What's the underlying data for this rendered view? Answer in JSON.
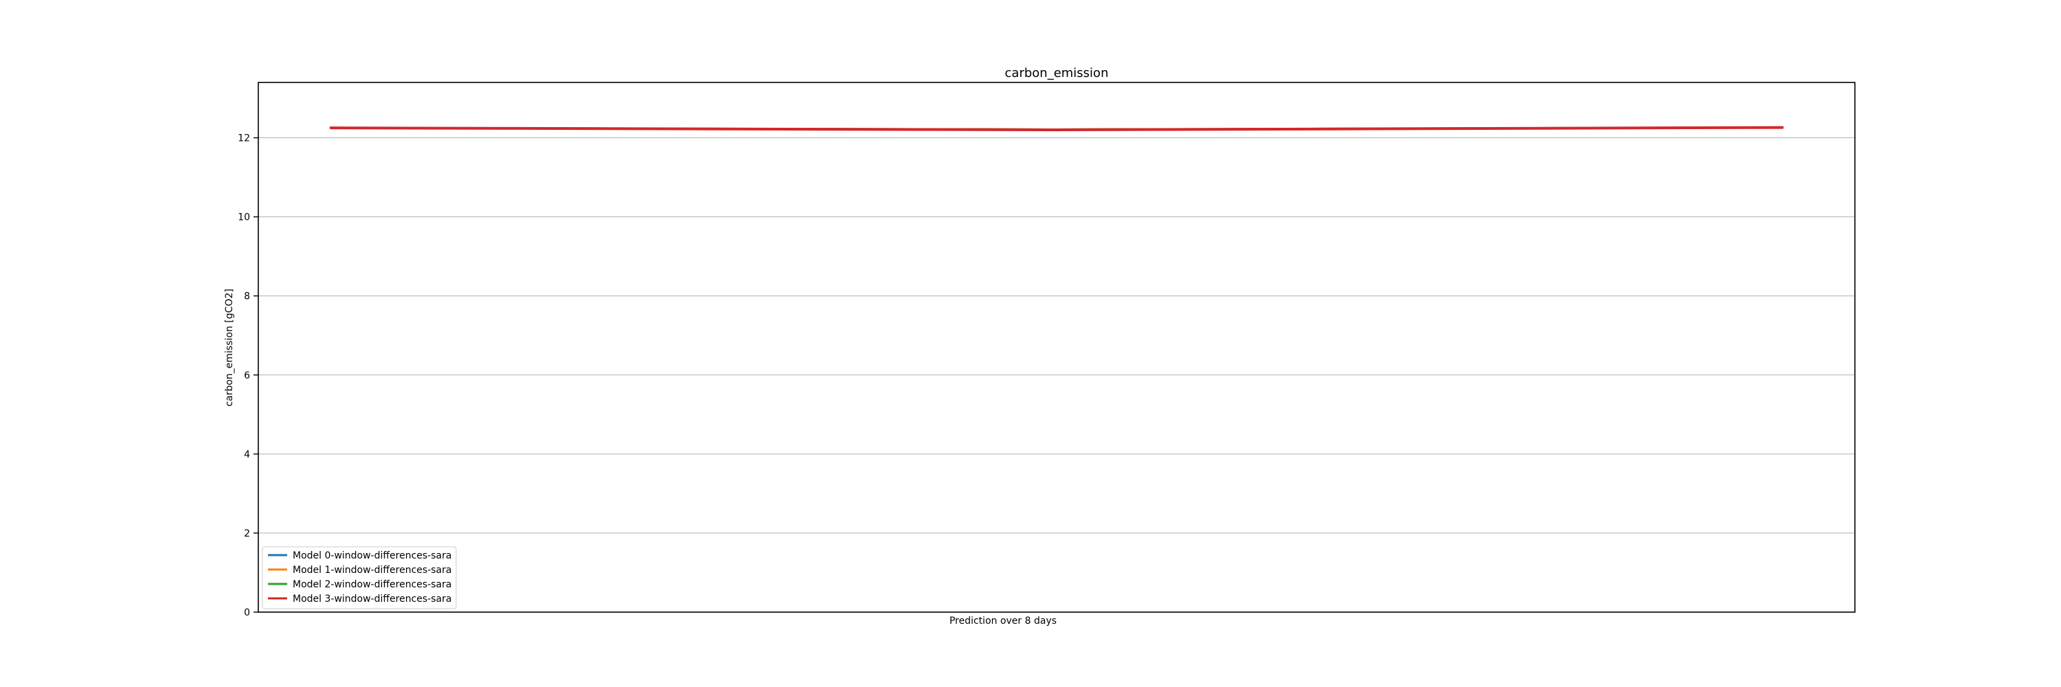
{
  "chart_data": {
    "type": "line",
    "title": "carbon_emission",
    "xlabel": "Prediction over 8 days",
    "ylabel": "carbon_emission [gCO2]",
    "ylim": [
      0,
      13.4
    ],
    "yticks": [
      0,
      2,
      4,
      6,
      8,
      10,
      12
    ],
    "xlim": [
      -0.05,
      1.05
    ],
    "grid": "horizontal",
    "legend_position": "lower-left",
    "x": [
      0,
      0.5,
      1
    ],
    "series": [
      {
        "name": "Model 0-window-differences-sara",
        "color": "#1f77b4",
        "values": [
          12.25,
          12.21,
          12.26
        ]
      },
      {
        "name": "Model 1-window-differences-sara",
        "color": "#ff7f0e",
        "values": [
          12.25,
          12.21,
          12.26
        ]
      },
      {
        "name": "Model 2-window-differences-sara",
        "color": "#2ca02c",
        "values": [
          12.25,
          12.21,
          12.26
        ]
      },
      {
        "name": "Model 3-window-differences-sara",
        "color": "#d62728",
        "values": [
          12.25,
          12.2,
          12.26
        ]
      }
    ]
  }
}
